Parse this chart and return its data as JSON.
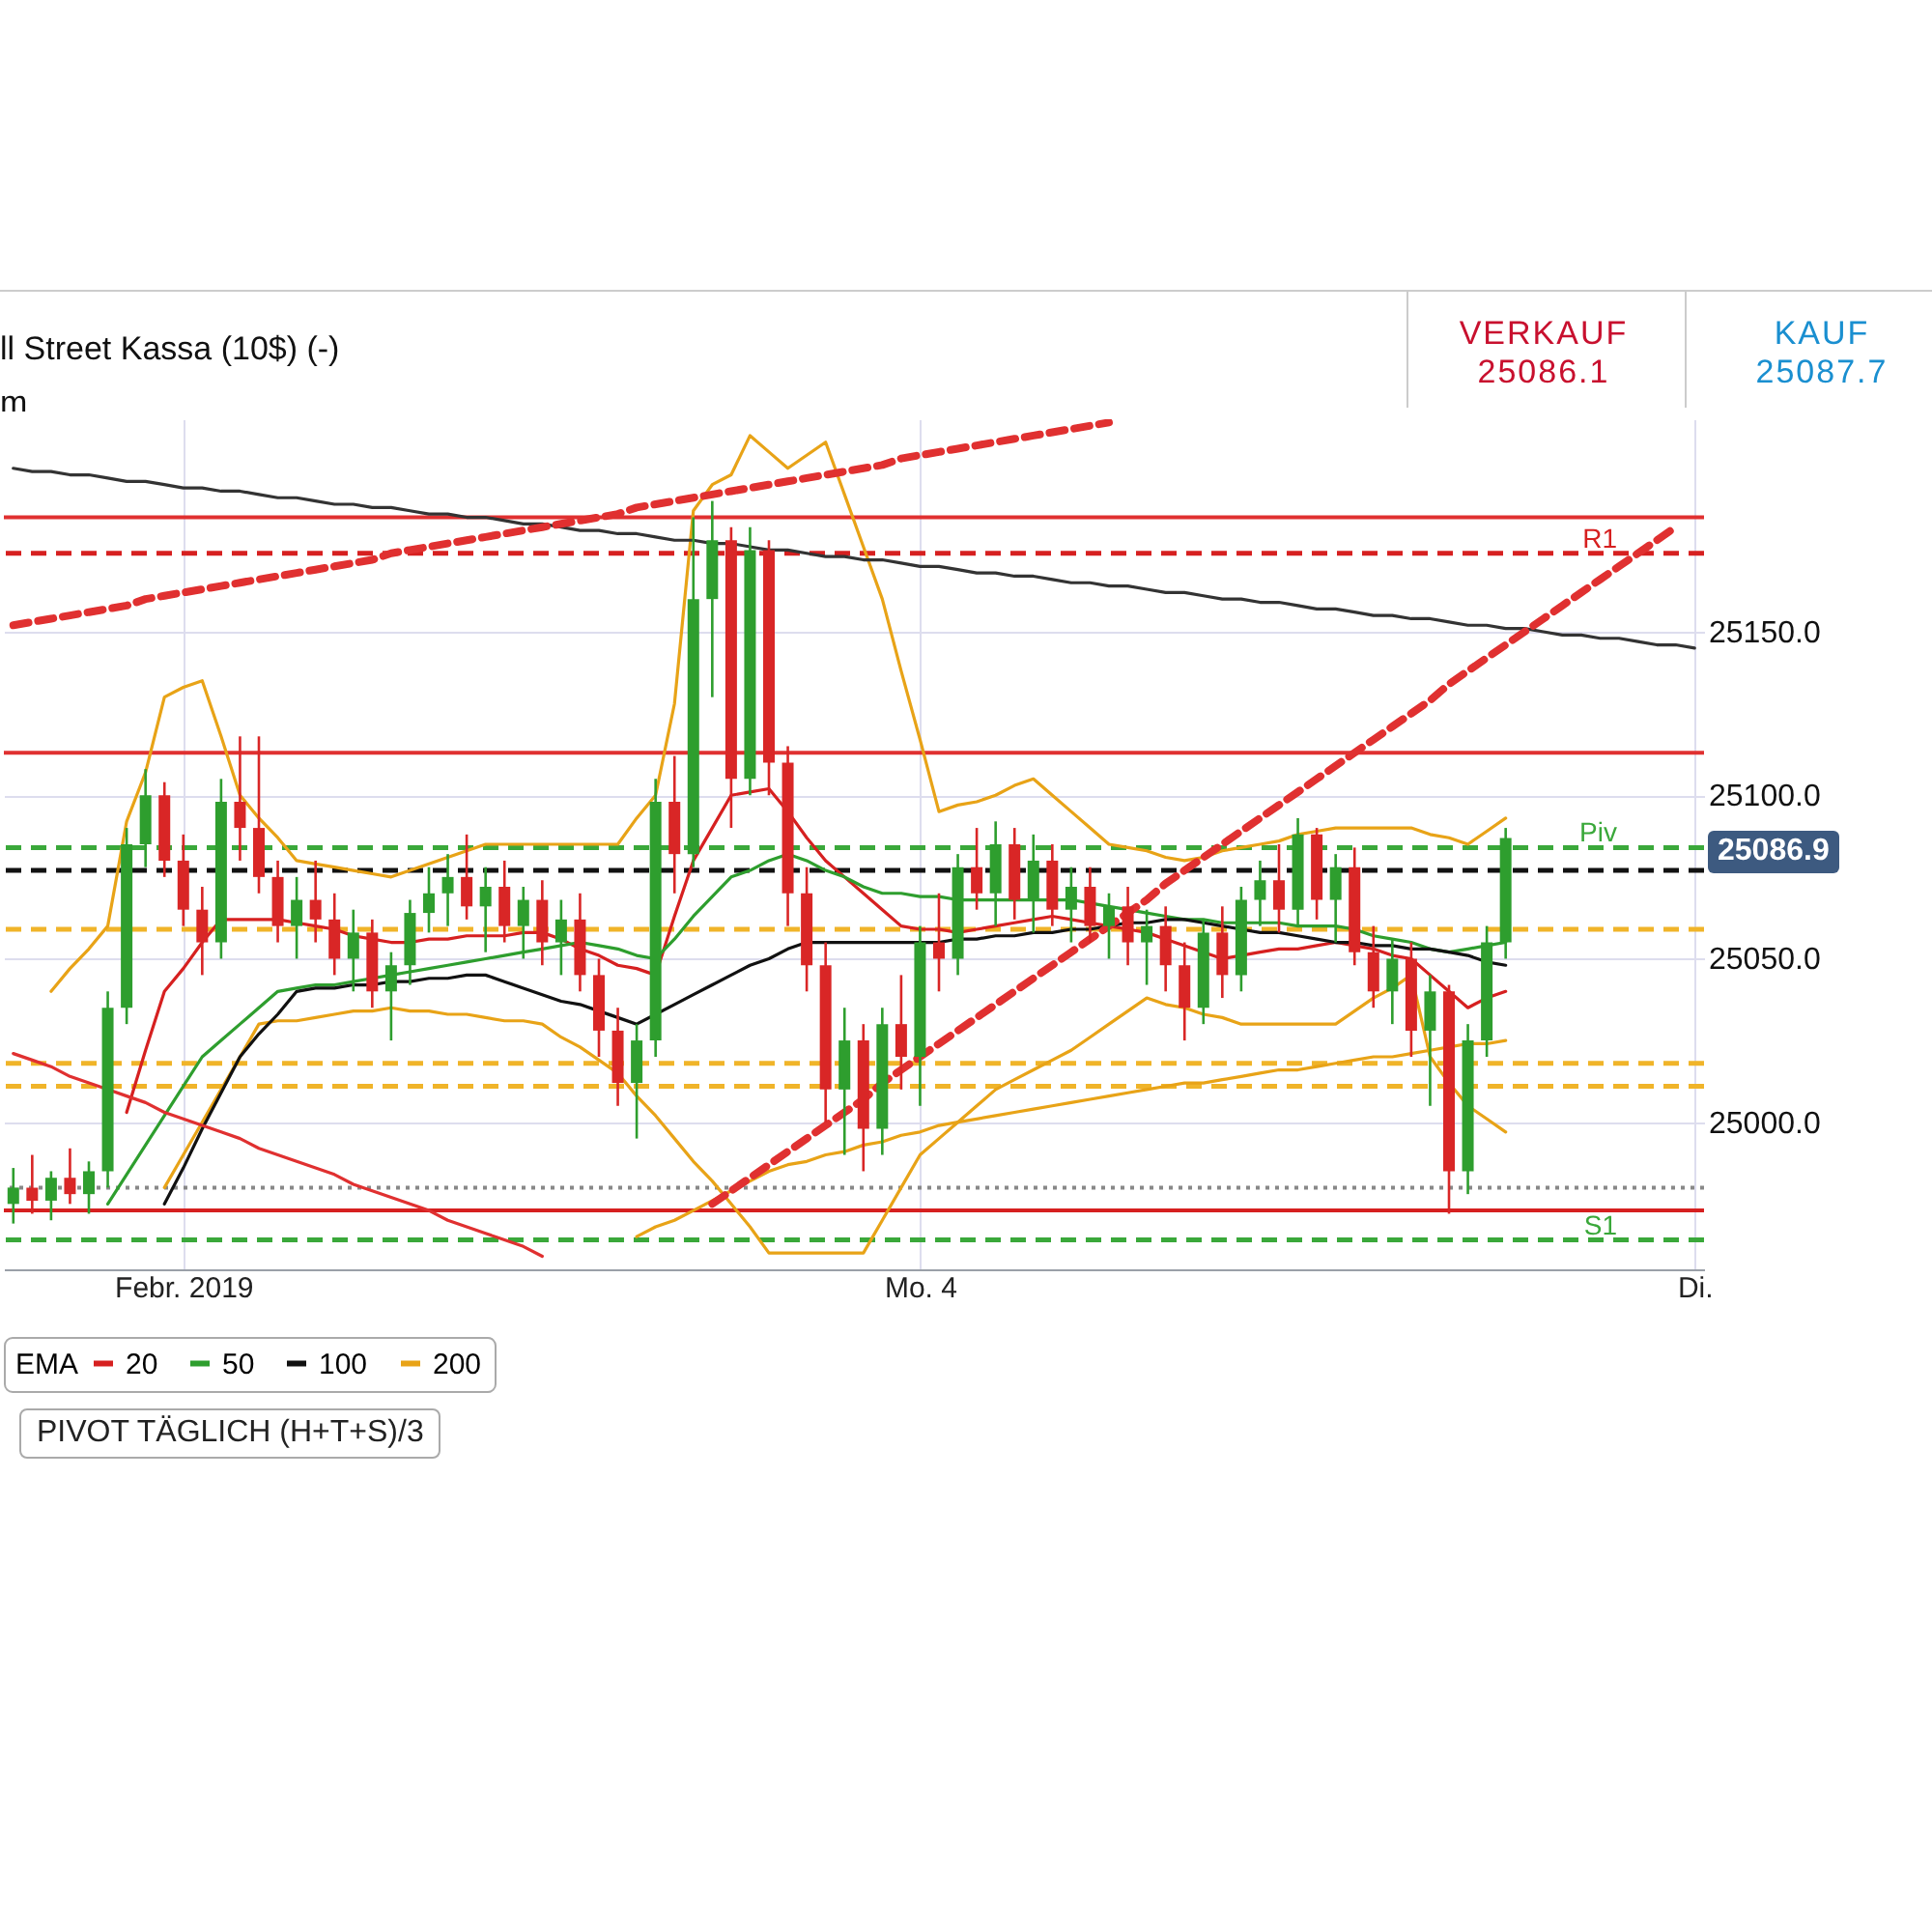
{
  "chart_data": {
    "type": "candlestick",
    "categories": [
      null,
      null,
      null,
      null,
      null,
      null,
      null,
      null,
      null,
      "Febr. 2019",
      null,
      null,
      null,
      null,
      null,
      null,
      null,
      null,
      null,
      null,
      null,
      null,
      null,
      null,
      null,
      null,
      null,
      null,
      null,
      null,
      null,
      null,
      null,
      null,
      null,
      null,
      null,
      null,
      null,
      null,
      null,
      null,
      null,
      null,
      null,
      null,
      null,
      null,
      "Mo. 4",
      null,
      null,
      null,
      null,
      null,
      null,
      null,
      null,
      null,
      null,
      null,
      null,
      null,
      null,
      null,
      null,
      null,
      null,
      null,
      null,
      null,
      null,
      null,
      null,
      null,
      null,
      null,
      null,
      null,
      null,
      null,
      null,
      null,
      null,
      null,
      null,
      null,
      null,
      null,
      null,
      "Di."
    ],
    "ylim": [
      24955,
      25215
    ],
    "yticks": [
      {
        "value": 25000,
        "label": "25000.0"
      },
      {
        "value": 25050,
        "label": "25050.0"
      },
      {
        "value": 25100,
        "label": "25100.0"
      },
      {
        "value": 25150,
        "label": "25150.0"
      }
    ],
    "grid": true,
    "legend": "bottom",
    "legend_title": "EMA",
    "ohlc": [
      [
        24975,
        24986,
        24969,
        24980
      ],
      [
        24980,
        24990,
        24972,
        24976
      ],
      [
        24976,
        24985,
        24970,
        24983
      ],
      [
        24983,
        24992,
        24975,
        24978
      ],
      [
        24978,
        24988,
        24972,
        24985
      ],
      [
        24985,
        25040,
        24980,
        25035
      ],
      [
        25035,
        25090,
        25030,
        25085
      ],
      [
        25085,
        25108,
        25078,
        25100
      ],
      [
        25100,
        25104,
        25075,
        25080
      ],
      [
        25080,
        25088,
        25060,
        25065
      ],
      [
        25065,
        25072,
        25045,
        25055
      ],
      [
        25055,
        25105,
        25050,
        25098
      ],
      [
        25098,
        25118,
        25080,
        25090
      ],
      [
        25090,
        25118,
        25070,
        25075
      ],
      [
        25075,
        25080,
        25055,
        25060
      ],
      [
        25060,
        25075,
        25050,
        25068
      ],
      [
        25068,
        25080,
        25055,
        25062
      ],
      [
        25062,
        25070,
        25045,
        25050
      ],
      [
        25050,
        25065,
        25040,
        25058
      ],
      [
        25058,
        25062,
        25035,
        25040
      ],
      [
        25040,
        25052,
        25025,
        25048
      ],
      [
        25048,
        25068,
        25042,
        25064
      ],
      [
        25064,
        25078,
        25058,
        25070
      ],
      [
        25070,
        25082,
        25060,
        25075
      ],
      [
        25075,
        25088,
        25062,
        25066
      ],
      [
        25066,
        25078,
        25052,
        25072
      ],
      [
        25072,
        25080,
        25055,
        25060
      ],
      [
        25060,
        25072,
        25050,
        25068
      ],
      [
        25068,
        25074,
        25048,
        25055
      ],
      [
        25055,
        25068,
        25045,
        25062
      ],
      [
        25062,
        25070,
        25040,
        25045
      ],
      [
        25045,
        25050,
        25020,
        25028
      ],
      [
        25028,
        25035,
        25005,
        25012
      ],
      [
        25012,
        25030,
        24995,
        25025
      ],
      [
        25025,
        25105,
        25020,
        25098
      ],
      [
        25098,
        25112,
        25070,
        25082
      ],
      [
        25082,
        25185,
        25078,
        25160
      ],
      [
        25160,
        25190,
        25130,
        25178
      ],
      [
        25178,
        25182,
        25090,
        25105
      ],
      [
        25105,
        25182,
        25100,
        25175
      ],
      [
        25175,
        25178,
        25100,
        25110
      ],
      [
        25110,
        25115,
        25060,
        25070
      ],
      [
        25070,
        25078,
        25040,
        25048
      ],
      [
        25048,
        25055,
        25000,
        25010
      ],
      [
        25010,
        25035,
        24990,
        25025
      ],
      [
        25025,
        25030,
        24985,
        24998
      ],
      [
        24998,
        25035,
        24990,
        25030
      ],
      [
        25030,
        25045,
        25010,
        25020
      ],
      [
        25020,
        25060,
        25005,
        25055
      ],
      [
        25055,
        25070,
        25040,
        25050
      ],
      [
        25050,
        25082,
        25045,
        25078
      ],
      [
        25078,
        25090,
        25065,
        25070
      ],
      [
        25070,
        25092,
        25060,
        25085
      ],
      [
        25085,
        25090,
        25062,
        25068
      ],
      [
        25068,
        25088,
        25058,
        25080
      ],
      [
        25080,
        25085,
        25060,
        25065
      ],
      [
        25065,
        25078,
        25055,
        25072
      ],
      [
        25072,
        25078,
        25055,
        25060
      ],
      [
        25060,
        25070,
        25050,
        25066
      ],
      [
        25066,
        25072,
        25048,
        25055
      ],
      [
        25055,
        25065,
        25042,
        25060
      ],
      [
        25060,
        25066,
        25040,
        25048
      ],
      [
        25048,
        25055,
        25025,
        25035
      ],
      [
        25035,
        25062,
        25030,
        25058
      ],
      [
        25058,
        25066,
        25038,
        25045
      ],
      [
        25045,
        25072,
        25040,
        25068
      ],
      [
        25068,
        25080,
        25060,
        25074
      ],
      [
        25074,
        25085,
        25058,
        25065
      ],
      [
        25065,
        25093,
        25060,
        25088
      ],
      [
        25088,
        25090,
        25062,
        25068
      ],
      [
        25068,
        25082,
        25055,
        25078
      ],
      [
        25078,
        25084,
        25048,
        25052
      ],
      [
        25052,
        25060,
        25035,
        25040
      ],
      [
        25040,
        25056,
        25030,
        25050
      ],
      [
        25050,
        25055,
        25020,
        25028
      ],
      [
        25028,
        25045,
        25005,
        25040
      ],
      [
        25040,
        25042,
        24972,
        24985
      ],
      [
        24985,
        25030,
        24978,
        25025
      ],
      [
        25025,
        25060,
        25020,
        25055
      ],
      [
        25055,
        25090,
        25050,
        25086.9
      ],
      null,
      null,
      null,
      null,
      null,
      null,
      null,
      null,
      null,
      null
    ],
    "series": [
      {
        "type": "line",
        "color": "#e8a317",
        "values": [
          null,
          null,
          25040,
          25047,
          25053,
          25060,
          25092,
          25107,
          25130,
          25133,
          25135,
          25118,
          25100,
          25093,
          25087,
          25080,
          25079,
          25078,
          25077,
          25076,
          25075,
          25077,
          25079,
          25081,
          25083,
          25085,
          25085,
          25085,
          25085,
          25085,
          25085,
          25085,
          25085,
          25093,
          25100,
          25128,
          25187,
          25195,
          25198,
          25210,
          25205,
          25200,
          25204,
          25208,
          25192,
          25176,
          25160,
          25138,
          25117,
          25095,
          25097,
          25098,
          25100,
          25103,
          25105,
          25100,
          25095,
          25090,
          25085,
          25084,
          25083,
          25081,
          25080,
          25081,
          25083,
          25084,
          25085,
          25086,
          25088,
          25089,
          25090,
          25090,
          25090,
          25090,
          25090,
          25088,
          25087,
          25085,
          25089,
          25093,
          null,
          null,
          null,
          null,
          null,
          null,
          null,
          null,
          null,
          null
        ]
      },
      {
        "type": "line",
        "color": "#e8a317",
        "values": [
          null,
          null,
          null,
          null,
          null,
          null,
          null,
          null,
          24980,
          24990,
          25000,
          25010,
          25020,
          25030,
          25031,
          25031,
          25032,
          25033,
          25034,
          25034,
          25035,
          25034,
          25034,
          25033,
          25033,
          25032,
          25031,
          25031,
          25030,
          25026,
          25023,
          25019,
          25015,
          25008,
          25002,
          24995,
          24988,
          24982,
          24975,
          24968,
          24960,
          24960,
          24960,
          24960,
          24960,
          24960,
          24970,
          24980,
          24990,
          24995,
          25000,
          25005,
          25010,
          25013,
          25016,
          25019,
          25022,
          25026,
          25030,
          25034,
          25038,
          25036,
          25035,
          25033,
          25032,
          25030,
          25030,
          25030,
          25030,
          25030,
          25030,
          25034,
          25038,
          25041,
          25045,
          25020,
          25012,
          25005,
          25001,
          24997,
          null,
          null,
          null,
          null,
          null,
          null,
          null,
          null,
          null,
          null
        ]
      },
      {
        "type": "line",
        "name": "20",
        "color": "#d62020",
        "values": [
          null,
          null,
          null,
          null,
          null,
          null,
          25003,
          25022,
          25040,
          25047,
          25055,
          25062,
          25062,
          25062,
          25062,
          25061,
          25060,
          25059,
          25057,
          25056,
          25055,
          25055,
          25056,
          25056,
          25057,
          25057,
          25057,
          25058,
          25058,
          25056,
          25053,
          25051,
          25048,
          25047,
          25045,
          25063,
          25080,
          25090,
          25100,
          25101,
          25102,
          25095,
          25087,
          25080,
          25075,
          25070,
          25065,
          25060,
          25059,
          25059,
          25058,
          25059,
          25060,
          25061,
          25062,
          25063,
          25062,
          25061,
          25060,
          25059,
          25058,
          25056,
          25054,
          25052,
          25050,
          25051,
          25052,
          25053,
          25053,
          25054,
          25055,
          25054,
          25053,
          25051,
          25050,
          25045,
          25040,
          25035,
          25038,
          25040,
          null,
          null,
          null,
          null,
          null,
          null,
          null,
          null,
          null,
          null
        ]
      },
      {
        "type": "line",
        "name": "50",
        "color": "#2e9e2e",
        "values": [
          null,
          null,
          null,
          null,
          null,
          24975,
          24984,
          24993,
          25002,
          25011,
          25020,
          25025,
          25030,
          25035,
          25040,
          25041,
          25042,
          25042,
          25043,
          25044,
          25045,
          25046,
          25047,
          25048,
          25049,
          25050,
          25051,
          25052,
          25053,
          25054,
          25055,
          25054,
          25053,
          25051,
          25050,
          25056,
          25063,
          25069,
          25075,
          25077,
          25080,
          25082,
          25080,
          25077,
          25075,
          25072,
          25070,
          25070,
          25069,
          25069,
          25068,
          25068,
          25068,
          25068,
          25068,
          25068,
          25068,
          25067,
          25066,
          25065,
          25064,
          25063,
          25062,
          25062,
          25061,
          25061,
          25061,
          25061,
          25060,
          25060,
          25060,
          25059,
          25057,
          25056,
          25055,
          25053,
          25052,
          25053,
          25054,
          25055,
          null,
          null,
          null,
          null,
          null,
          null,
          null,
          null,
          null,
          null
        ]
      },
      {
        "type": "line",
        "name": "100",
        "color": "#111111",
        "values": [
          null,
          null,
          null,
          null,
          null,
          null,
          null,
          null,
          24975,
          24986,
          24998,
          25009,
          25020,
          25027,
          25033,
          25040,
          25041,
          25041,
          25042,
          25042,
          25043,
          25043,
          25044,
          25044,
          25045,
          25045,
          25043,
          25041,
          25039,
          25037,
          25036,
          25034,
          25032,
          25030,
          25033,
          25036,
          25039,
          25042,
          25045,
          25048,
          25050,
          25053,
          25055,
          25055,
          25055,
          25055,
          25055,
          25055,
          25055,
          25055,
          25056,
          25056,
          25057,
          25057,
          25058,
          25058,
          25059,
          25059,
          25060,
          25061,
          25061,
          25062,
          25062,
          25061,
          25060,
          25059,
          25058,
          25058,
          25057,
          25056,
          25055,
          25055,
          25054,
          25054,
          25053,
          25053,
          25052,
          25051,
          25049,
          25048,
          null,
          null,
          null,
          null,
          null,
          null,
          null,
          null,
          null,
          null
        ]
      },
      {
        "type": "line",
        "name": "200",
        "color": "#e8a317",
        "values": [
          null,
          null,
          null,
          null,
          null,
          null,
          null,
          null,
          null,
          null,
          null,
          null,
          null,
          null,
          null,
          null,
          null,
          null,
          null,
          null,
          null,
          null,
          null,
          null,
          null,
          null,
          null,
          null,
          null,
          null,
          null,
          null,
          null,
          24965,
          24968,
          24970,
          24973,
          24976,
          24979,
          24982,
          24985,
          24987,
          24988,
          24990,
          24991,
          24993,
          24994,
          24996,
          24997,
          24999,
          25000,
          25001,
          25002,
          25003,
          25004,
          25005,
          25006,
          25007,
          25008,
          25009,
          25010,
          25011,
          25012,
          25012,
          25013,
          25014,
          25015,
          25016,
          25016,
          25017,
          25018,
          25019,
          25020,
          25020,
          25021,
          25022,
          25023,
          25024,
          25024,
          25025,
          null,
          null,
          null,
          null,
          null,
          null,
          null,
          null,
          null,
          null
        ]
      },
      {
        "type": "line",
        "color": "#333333",
        "values": [
          25200,
          25199,
          25199,
          25198,
          25198,
          25197,
          25196,
          25196,
          25195,
          25194,
          25194,
          25193,
          25193,
          25192,
          25191,
          25191,
          25190,
          25189,
          25189,
          25188,
          25188,
          25187,
          25186,
          25186,
          25185,
          25185,
          25184,
          25183,
          25183,
          25182,
          25181,
          25181,
          25180,
          25180,
          25179,
          25178,
          25178,
          25177,
          25177,
          25176,
          25175,
          25175,
          25174,
          25173,
          25173,
          25172,
          25172,
          25171,
          25170,
          25170,
          25169,
          25168,
          25168,
          25167,
          25167,
          25166,
          25165,
          25165,
          25164,
          25164,
          25163,
          25162,
          25162,
          25161,
          25160,
          25160,
          25159,
          25159,
          25158,
          25157,
          25157,
          25156,
          25155,
          25155,
          25154,
          25154,
          25153,
          25152,
          25152,
          25151,
          25151,
          25150,
          25149,
          25149,
          25148,
          25148,
          25147,
          25146,
          25146,
          25145
        ]
      },
      {
        "type": "line",
        "color": "#e03030",
        "line_style": "dashed",
        "values": [
          25152,
          25153,
          25154,
          25155,
          25156,
          25157,
          25158,
          25160,
          25161,
          25162,
          25163,
          25164,
          25165,
          25166,
          25167,
          25168,
          25169,
          25170,
          25171,
          25172,
          25174,
          25175,
          25176,
          25177,
          25178,
          25179,
          25180,
          25181,
          25182,
          25183,
          25184,
          25185,
          25186,
          25188,
          25189,
          25190,
          25191,
          25192,
          25193,
          25194,
          25195,
          25196,
          25197,
          25198,
          25199,
          25200,
          25201,
          25203,
          25204,
          25205,
          25206,
          25207,
          25208,
          25209,
          25210,
          25211,
          25212,
          25213,
          25214,
          null,
          null,
          null,
          null,
          null,
          null,
          null,
          null,
          null,
          null,
          null,
          null,
          null,
          null,
          null,
          null,
          null,
          null,
          null,
          null,
          null,
          null,
          null,
          null,
          null,
          null,
          null,
          null,
          null,
          null,
          null
        ]
      },
      {
        "type": "line",
        "color": "#e03030",
        "line_style": "dashed",
        "values": [
          null,
          null,
          null,
          null,
          null,
          null,
          null,
          null,
          null,
          null,
          null,
          null,
          null,
          null,
          null,
          null,
          null,
          null,
          null,
          null,
          null,
          null,
          null,
          null,
          null,
          null,
          null,
          null,
          null,
          null,
          null,
          null,
          null,
          null,
          null,
          null,
          null,
          24975,
          24979,
          24983,
          24987,
          24991,
          24995,
          24999,
          25003,
          25007,
          25012,
          25016,
          25020,
          25024,
          25028,
          25032,
          25036,
          25040,
          25044,
          25048,
          25052,
          25056,
          25060,
          25064,
          25068,
          25073,
          25077,
          25081,
          25085,
          25089,
          25093,
          25097,
          25101,
          25105,
          25109,
          25113,
          25117,
          25121,
          25125,
          25129,
          25134,
          25138,
          25142,
          25146,
          25150,
          25154,
          25158,
          25162,
          25166,
          25170,
          25174,
          25178,
          25182,
          null
        ]
      },
      {
        "type": "line",
        "color": "#e03030",
        "values": [
          25021,
          25019,
          25017,
          25014,
          25012,
          25010,
          25008,
          25006,
          25003,
          25001,
          24999,
          24997,
          24995,
          24992,
          24990,
          24988,
          24986,
          24984,
          24981,
          24979,
          24977,
          24975,
          24973,
          24970,
          24968,
          24966,
          24964,
          24962,
          24959,
          null,
          null,
          null,
          null,
          null,
          null,
          null,
          null,
          null,
          null,
          null,
          null,
          null,
          null,
          null,
          null,
          null,
          null,
          null,
          null,
          null,
          null,
          null,
          null,
          null,
          null,
          null,
          null,
          null,
          null,
          null,
          null,
          null,
          null,
          null,
          null,
          null,
          null,
          null,
          null,
          null,
          null,
          null,
          null,
          null,
          null,
          null,
          null,
          null,
          null,
          null,
          null,
          null,
          null,
          null,
          null,
          null,
          null,
          null,
          null,
          null
        ]
      }
    ],
    "ref_lines": [
      {
        "axis": "y",
        "value": 25185,
        "color": "#e03030"
      },
      {
        "axis": "y",
        "value": 25174,
        "label": "R1",
        "color": "#d62020",
        "line_style": "dashed"
      },
      {
        "axis": "y",
        "value": 25113,
        "color": "#e03030"
      },
      {
        "axis": "y",
        "value": 25084,
        "label": "Piv",
        "color": "#3aa83a",
        "line_style": "dashed"
      },
      {
        "axis": "y",
        "value": 25077,
        "color": "#111111",
        "line_style": "dashed"
      },
      {
        "axis": "y",
        "value": 25059,
        "color": "#f0b429",
        "line_style": "dashed"
      },
      {
        "axis": "y",
        "value": 25018,
        "color": "#f0b429",
        "line_style": "dashed"
      },
      {
        "axis": "y",
        "value": 25011,
        "color": "#f0b429",
        "line_style": "dashed"
      },
      {
        "axis": "y",
        "value": 24980,
        "color": "#888888",
        "line_style": "dotted"
      },
      {
        "axis": "y",
        "value": 24973,
        "color": "#d62020"
      },
      {
        "axis": "y",
        "value": 24964,
        "label": "S1",
        "color": "#3aa83a",
        "line_style": "dashed"
      }
    ],
    "annotations": [
      "ll Street Kassa (10$) (-)",
      "m",
      "VERKAUF",
      "25086.1",
      "KAUF",
      "25087.7",
      "PIVOT  TÄGLICH  (H+T+S)/3",
      "25086.9"
    ]
  }
}
